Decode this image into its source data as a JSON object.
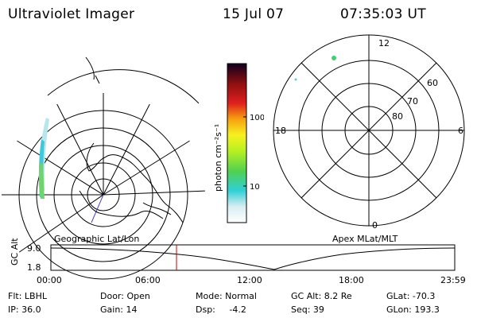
{
  "header": {
    "title": "Ultraviolet Imager",
    "date": "15 Jul 07",
    "time": "07:35:03 UT"
  },
  "left_map": {
    "label": "Geographic Lat/Lon"
  },
  "right_map": {
    "label": "Apex MLat/MLT",
    "mlt_labels": {
      "top": "12",
      "left": "18",
      "right": "6",
      "bottom": "0"
    },
    "lat_labels": [
      "60",
      "70",
      "80"
    ]
  },
  "colorbar": {
    "unit": "photon cm⁻²s⁻¹",
    "ticks": [
      "100",
      "10"
    ]
  },
  "alt_plot": {
    "ylabel": "GC Alt",
    "yticks": [
      "9.0",
      "1.8"
    ],
    "xticks": [
      "00:00",
      "06:00",
      "12:00",
      "18:00",
      "23:59"
    ],
    "marker_time": "07:35",
    "colors": {
      "marker": "#cc0000",
      "curve": "#000000"
    }
  },
  "info": {
    "flt": "Flt: LBHL",
    "ip": "IP: 36.0",
    "door": "Door: Open",
    "gain": "Gain: 14",
    "mode": "Mode: Normal",
    "dsp": "Dsp:     -4.2",
    "gcalt": "GC Alt: 8.2 Re",
    "seq": "Seq: 39",
    "glat": "GLat: -70.3",
    "glon": "GLon: 193.3"
  }
}
